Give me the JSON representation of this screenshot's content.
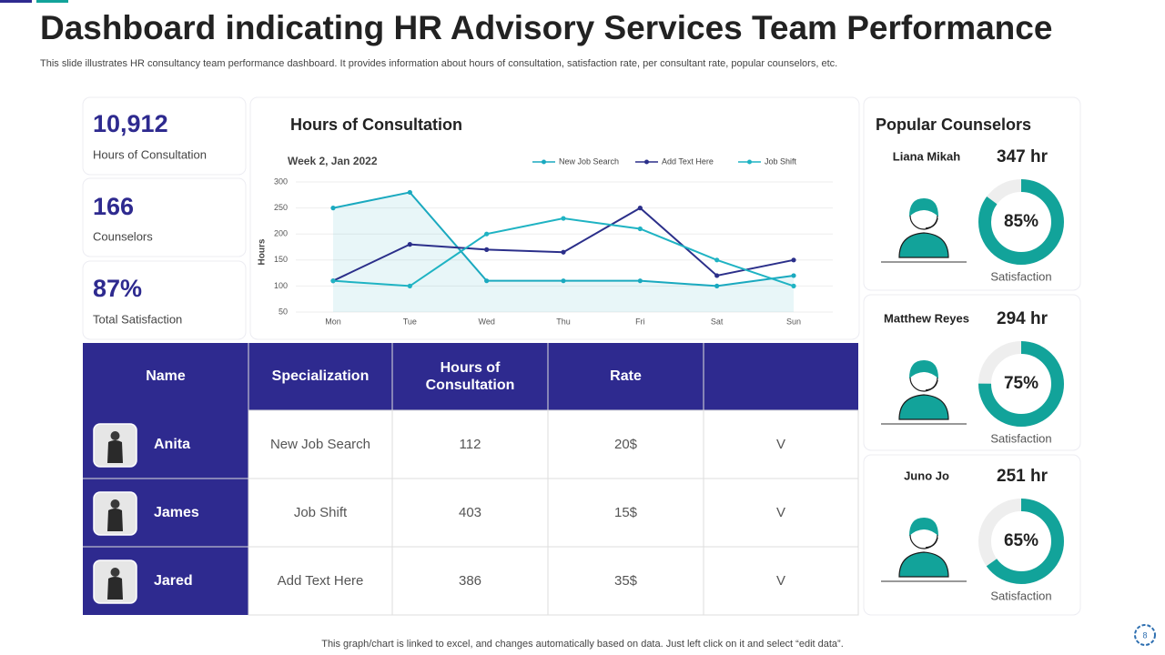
{
  "header": {
    "title": "Dashboard indicating HR Advisory Services Team Performance",
    "subtitle": "This slide illustrates HR consultancy team performance dashboard. It provides information about hours of consultation, satisfaction rate, per consultant rate, popular counselors, etc."
  },
  "kpis": [
    {
      "value": "10,912",
      "label": "Hours of Consultation"
    },
    {
      "value": "166",
      "label": "Counselors"
    },
    {
      "value": "87%",
      "label": "Total Satisfaction"
    }
  ],
  "chart_data": {
    "type": "line",
    "title": "Hours of Consultation",
    "subtitle": "Week 2, Jan 2022",
    "y_label": "Hours",
    "categories": [
      "Mon",
      "Tue",
      "Wed",
      "Thu",
      "Fri",
      "Sat",
      "Sun"
    ],
    "series": [
      {
        "name": "New Job Search",
        "color": "#1aa9bf",
        "area": true,
        "values": [
          250,
          280,
          110,
          110,
          110,
          100,
          120
        ]
      },
      {
        "name": "Add Text Here",
        "color": "#2b2f8a",
        "values": [
          110,
          180,
          170,
          165,
          250,
          120,
          150
        ]
      },
      {
        "name": "Job Shift",
        "color": "#1fb3c3",
        "values": [
          110,
          100,
          200,
          230,
          210,
          150,
          100
        ]
      }
    ],
    "ylim": [
      50,
      300
    ],
    "yticks": [
      50,
      100,
      150,
      200,
      250,
      300
    ],
    "grid": true,
    "legend": "top"
  },
  "table": {
    "headers": [
      "Name",
      "Specialization",
      "Hours of Consultation",
      "Rate"
    ],
    "rows": [
      [
        "Anita",
        "New Job Search",
        112,
        "20$",
        "V"
      ],
      [
        "James",
        "Job Shift",
        403,
        "15$",
        "V"
      ],
      [
        "Jared",
        "Add Text Here",
        386,
        "35$",
        "V"
      ]
    ]
  },
  "counselors_title": "Popular Counselors",
  "counselors": [
    {
      "name": "Liana Mikah",
      "hours": "347 hr",
      "percent": {
        "value": 85,
        "label": "85%"
      },
      "caption": "Satisfaction"
    },
    {
      "name": "Matthew Reyes",
      "hours": "294 hr",
      "percent": {
        "value": 75,
        "label": "75%"
      },
      "caption": "Satisfaction"
    },
    {
      "name": "Juno Jo",
      "hours": "251 hr",
      "percent": {
        "value": 65,
        "label": "65%"
      },
      "caption": "Satisfaction"
    }
  ],
  "footer": "This graph/chart is linked to excel, and changes automatically based on data. Just left click on it and select “edit data”.",
  "page_number": 8
}
